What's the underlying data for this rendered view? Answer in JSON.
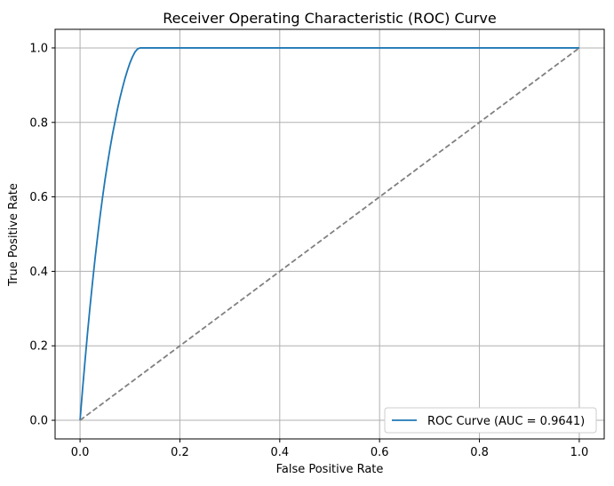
{
  "chart_data": {
    "type": "line",
    "title": "Receiver Operating Characteristic (ROC) Curve",
    "xlabel": "False Positive Rate",
    "ylabel": "True Positive Rate",
    "xlim": [
      -0.05,
      1.05
    ],
    "ylim": [
      -0.05,
      1.05
    ],
    "x_ticks": [
      0.0,
      0.2,
      0.4,
      0.6,
      0.8,
      1.0
    ],
    "y_ticks": [
      0.0,
      0.2,
      0.4,
      0.6,
      0.8,
      1.0
    ],
    "x_tick_labels": [
      "0.0",
      "0.2",
      "0.4",
      "0.6",
      "0.8",
      "1.0"
    ],
    "y_tick_labels": [
      "0.0",
      "0.2",
      "0.4",
      "0.6",
      "0.8",
      "1.0"
    ],
    "grid": true,
    "legend_position": "lower-right",
    "series": [
      {
        "name": "ROC Curve (AUC = 0.9641)",
        "color": "#1f77b4",
        "style": "solid",
        "x": [
          0.0,
          0.005,
          0.01,
          0.015,
          0.02,
          0.025,
          0.03,
          0.035,
          0.04,
          0.045,
          0.05,
          0.055,
          0.06,
          0.065,
          0.07,
          0.075,
          0.08,
          0.085,
          0.09,
          0.095,
          0.1,
          0.105,
          0.11,
          0.115,
          0.12,
          1.0
        ],
        "y": [
          0.0,
          0.083,
          0.16,
          0.235,
          0.305,
          0.371,
          0.434,
          0.492,
          0.547,
          0.598,
          0.646,
          0.689,
          0.73,
          0.768,
          0.802,
          0.836,
          0.866,
          0.893,
          0.918,
          0.94,
          0.96,
          0.976,
          0.989,
          0.997,
          1.0,
          1.0
        ]
      },
      {
        "color": "#808080",
        "style": "dashed",
        "x": [
          0.0,
          1.0
        ],
        "y": [
          0.0,
          1.0
        ]
      }
    ]
  }
}
